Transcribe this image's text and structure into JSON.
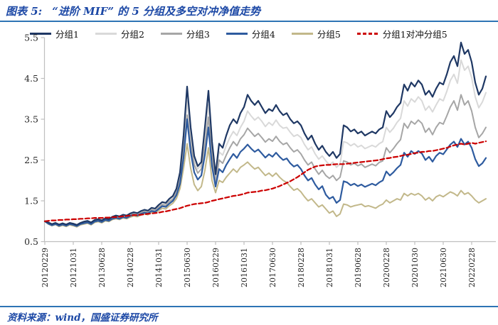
{
  "header": {
    "chart_label": "图表 5:",
    "title": "“进阶 MIF” 的 5 分组及多空对冲净值走势"
  },
  "footer": {
    "source": "资料来源：wind，国盛证券研究所"
  },
  "colors": {
    "title_blue": "#1D49A6",
    "rule_blue": "#2E74B5",
    "axis_gray": "#BFBFBF",
    "tick_text": "#262626"
  },
  "chart_data": {
    "type": "line",
    "title": "“进阶 MIF” 的 5 分组及多空对冲净值走势",
    "ylim": [
      0.5,
      5.5
    ],
    "y_ticks": [
      0.5,
      1.5,
      2.5,
      3.5,
      4.5,
      5.5
    ],
    "grid": false,
    "legend_position": "top",
    "x_tick_labels": [
      "20120229",
      "20121031",
      "20130628",
      "20140228",
      "20141031",
      "20150630",
      "20160229",
      "20161031",
      "20170630",
      "20180228",
      "20181031",
      "20190628",
      "20200228",
      "20201030",
      "20210630",
      "20220228"
    ],
    "months_per_tick": 8,
    "series": [
      {
        "name": "分组1",
        "color": "#1F3864",
        "dash": false,
        "values": [
          1.0,
          0.97,
          0.93,
          0.96,
          0.92,
          0.95,
          0.92,
          0.96,
          0.94,
          0.91,
          0.96,
          0.99,
          1.01,
          0.97,
          1.03,
          1.05,
          1.02,
          1.07,
          1.05,
          1.11,
          1.14,
          1.12,
          1.16,
          1.14,
          1.19,
          1.22,
          1.2,
          1.25,
          1.28,
          1.26,
          1.33,
          1.31,
          1.4,
          1.47,
          1.45,
          1.55,
          1.62,
          1.8,
          2.2,
          3.1,
          4.3,
          3.3,
          2.6,
          2.35,
          2.45,
          3.3,
          4.2,
          2.95,
          2.15,
          2.9,
          2.8,
          3.1,
          3.35,
          3.5,
          3.4,
          3.65,
          3.8,
          4.1,
          3.95,
          3.85,
          3.95,
          3.8,
          3.65,
          3.75,
          3.7,
          3.85,
          3.7,
          3.6,
          3.65,
          3.5,
          3.4,
          3.45,
          3.35,
          3.15,
          3.0,
          3.1,
          2.9,
          2.75,
          2.85,
          2.7,
          2.6,
          2.7,
          2.55,
          2.65,
          3.35,
          3.3,
          3.2,
          3.25,
          3.15,
          3.2,
          3.1,
          3.15,
          3.2,
          3.15,
          3.25,
          3.3,
          3.7,
          3.55,
          3.65,
          3.8,
          3.9,
          4.35,
          4.2,
          4.4,
          4.3,
          4.45,
          4.35,
          4.1,
          4.2,
          4.05,
          4.25,
          4.4,
          4.35,
          4.6,
          4.9,
          5.05,
          4.8,
          5.38,
          5.1,
          5.2,
          4.9,
          4.4,
          4.1,
          4.25,
          4.55
        ]
      },
      {
        "name": "分组2",
        "color": "#D9D9D9",
        "dash": false,
        "values": [
          1.0,
          0.96,
          0.92,
          0.95,
          0.91,
          0.94,
          0.91,
          0.95,
          0.93,
          0.9,
          0.95,
          0.97,
          0.99,
          0.95,
          1.01,
          1.03,
          1.0,
          1.05,
          1.03,
          1.09,
          1.12,
          1.1,
          1.14,
          1.12,
          1.17,
          1.2,
          1.18,
          1.23,
          1.26,
          1.24,
          1.31,
          1.29,
          1.38,
          1.45,
          1.43,
          1.52,
          1.59,
          1.76,
          2.1,
          2.9,
          3.95,
          3.1,
          2.5,
          2.28,
          2.38,
          3.05,
          3.85,
          2.8,
          2.05,
          2.7,
          2.62,
          2.85,
          3.05,
          3.2,
          3.1,
          3.3,
          3.45,
          3.7,
          3.58,
          3.48,
          3.55,
          3.45,
          3.32,
          3.42,
          3.35,
          3.48,
          3.35,
          3.28,
          3.3,
          3.18,
          3.08,
          3.12,
          3.05,
          2.88,
          2.75,
          2.82,
          2.65,
          2.52,
          2.6,
          2.48,
          2.38,
          2.45,
          2.32,
          2.4,
          2.95,
          2.92,
          2.85,
          2.9,
          2.82,
          2.86,
          2.78,
          2.82,
          2.86,
          2.82,
          2.9,
          2.95,
          3.3,
          3.18,
          3.28,
          3.42,
          3.52,
          3.95,
          3.82,
          4.0,
          3.92,
          4.05,
          3.95,
          3.72,
          3.82,
          3.68,
          3.85,
          4.0,
          3.95,
          4.18,
          4.45,
          4.6,
          4.38,
          4.95,
          4.7,
          4.8,
          4.52,
          4.05,
          3.78,
          3.92,
          4.15
        ]
      },
      {
        "name": "分组3",
        "color": "#A6A6A6",
        "dash": false,
        "values": [
          1.0,
          0.95,
          0.91,
          0.94,
          0.9,
          0.93,
          0.9,
          0.94,
          0.92,
          0.89,
          0.94,
          0.96,
          0.98,
          0.94,
          1.0,
          1.02,
          0.99,
          1.04,
          1.02,
          1.08,
          1.1,
          1.08,
          1.12,
          1.1,
          1.15,
          1.18,
          1.16,
          1.21,
          1.24,
          1.22,
          1.28,
          1.26,
          1.34,
          1.41,
          1.39,
          1.48,
          1.54,
          1.7,
          2.0,
          2.7,
          3.6,
          2.9,
          2.38,
          2.18,
          2.28,
          2.85,
          3.55,
          2.6,
          1.95,
          2.5,
          2.42,
          2.62,
          2.8,
          2.95,
          2.85,
          3.02,
          3.12,
          3.28,
          3.18,
          3.08,
          3.15,
          3.05,
          2.94,
          3.02,
          2.96,
          3.08,
          2.96,
          2.88,
          2.92,
          2.8,
          2.7,
          2.75,
          2.65,
          2.5,
          2.38,
          2.45,
          2.28,
          2.15,
          2.25,
          2.12,
          2.05,
          2.12,
          2.0,
          2.08,
          2.48,
          2.45,
          2.38,
          2.42,
          2.36,
          2.4,
          2.32,
          2.36,
          2.4,
          2.36,
          2.44,
          2.48,
          2.8,
          2.68,
          2.78,
          2.9,
          3.0,
          3.4,
          3.28,
          3.45,
          3.38,
          3.48,
          3.4,
          3.18,
          3.28,
          3.12,
          3.3,
          3.42,
          3.38,
          3.58,
          3.8,
          3.95,
          3.72,
          4.1,
          3.85,
          3.95,
          3.7,
          3.3,
          3.05,
          3.15,
          3.3
        ]
      },
      {
        "name": "分组4",
        "color": "#2E5B9F",
        "dash": false,
        "values": [
          1.0,
          0.94,
          0.9,
          0.93,
          0.89,
          0.92,
          0.89,
          0.93,
          0.91,
          0.88,
          0.93,
          0.95,
          0.97,
          0.93,
          0.99,
          1.01,
          0.98,
          1.03,
          1.01,
          1.06,
          1.08,
          1.06,
          1.1,
          1.08,
          1.13,
          1.16,
          1.14,
          1.18,
          1.21,
          1.19,
          1.25,
          1.23,
          1.3,
          1.37,
          1.35,
          1.43,
          1.5,
          1.64,
          1.92,
          2.55,
          3.5,
          2.7,
          2.2,
          2.02,
          2.12,
          2.62,
          3.3,
          2.35,
          1.85,
          2.28,
          2.2,
          2.38,
          2.52,
          2.65,
          2.55,
          2.7,
          2.78,
          2.88,
          2.78,
          2.7,
          2.76,
          2.66,
          2.56,
          2.64,
          2.58,
          2.68,
          2.58,
          2.5,
          2.54,
          2.42,
          2.34,
          2.38,
          2.28,
          2.12,
          2.0,
          2.06,
          1.9,
          1.78,
          1.86,
          1.65,
          1.55,
          1.6,
          1.45,
          1.52,
          1.98,
          1.95,
          1.88,
          1.92,
          1.86,
          1.9,
          1.84,
          1.88,
          1.92,
          1.88,
          1.95,
          2.0,
          2.22,
          2.12,
          2.2,
          2.3,
          2.38,
          2.68,
          2.58,
          2.72,
          2.65,
          2.72,
          2.66,
          2.5,
          2.58,
          2.46,
          2.6,
          2.68,
          2.64,
          2.76,
          2.88,
          2.95,
          2.82,
          3.02,
          2.88,
          2.95,
          2.8,
          2.52,
          2.35,
          2.42,
          2.55
        ]
      },
      {
        "name": "分组5",
        "color": "#C2B88A",
        "dash": false,
        "values": [
          1.0,
          0.93,
          0.89,
          0.92,
          0.87,
          0.9,
          0.87,
          0.91,
          0.89,
          0.86,
          0.91,
          0.93,
          0.95,
          0.91,
          0.97,
          0.99,
          0.96,
          1.01,
          0.99,
          1.04,
          1.06,
          1.04,
          1.08,
          1.06,
          1.1,
          1.13,
          1.11,
          1.15,
          1.18,
          1.16,
          1.22,
          1.2,
          1.26,
          1.32,
          1.3,
          1.38,
          1.44,
          1.56,
          1.8,
          2.3,
          2.9,
          2.3,
          1.9,
          1.75,
          1.85,
          2.25,
          2.8,
          2.0,
          1.7,
          2.0,
          1.95,
          2.08,
          2.18,
          2.28,
          2.2,
          2.32,
          2.38,
          2.45,
          2.36,
          2.28,
          2.32,
          2.22,
          2.12,
          2.18,
          2.1,
          2.18,
          2.08,
          2.0,
          1.95,
          1.85,
          1.76,
          1.8,
          1.72,
          1.6,
          1.5,
          1.55,
          1.45,
          1.35,
          1.4,
          1.3,
          1.2,
          1.25,
          1.12,
          1.18,
          1.42,
          1.4,
          1.35,
          1.38,
          1.4,
          1.42,
          1.36,
          1.38,
          1.35,
          1.32,
          1.38,
          1.42,
          1.52,
          1.45,
          1.5,
          1.55,
          1.52,
          1.68,
          1.62,
          1.68,
          1.64,
          1.68,
          1.62,
          1.52,
          1.58,
          1.5,
          1.6,
          1.64,
          1.6,
          1.66,
          1.72,
          1.68,
          1.62,
          1.75,
          1.66,
          1.7,
          1.62,
          1.52,
          1.45,
          1.5,
          1.55
        ]
      },
      {
        "name": "分组1对冲分组5",
        "color": "#CC0000",
        "dash": true,
        "values": [
          1.0,
          1.01,
          1.02,
          1.02,
          1.03,
          1.03,
          1.04,
          1.04,
          1.05,
          1.05,
          1.06,
          1.06,
          1.07,
          1.07,
          1.08,
          1.08,
          1.08,
          1.09,
          1.09,
          1.1,
          1.1,
          1.11,
          1.12,
          1.13,
          1.14,
          1.15,
          1.15,
          1.16,
          1.17,
          1.18,
          1.19,
          1.2,
          1.21,
          1.23,
          1.24,
          1.26,
          1.28,
          1.3,
          1.32,
          1.35,
          1.38,
          1.4,
          1.42,
          1.43,
          1.44,
          1.45,
          1.47,
          1.5,
          1.52,
          1.54,
          1.56,
          1.58,
          1.6,
          1.62,
          1.63,
          1.65,
          1.67,
          1.7,
          1.71,
          1.72,
          1.73,
          1.75,
          1.76,
          1.78,
          1.8,
          1.83,
          1.86,
          1.9,
          1.94,
          1.98,
          2.03,
          2.08,
          2.14,
          2.2,
          2.26,
          2.3,
          2.34,
          2.36,
          2.37,
          2.38,
          2.38,
          2.39,
          2.4,
          2.4,
          2.4,
          2.41,
          2.42,
          2.43,
          2.44,
          2.45,
          2.46,
          2.47,
          2.48,
          2.49,
          2.5,
          2.52,
          2.54,
          2.55,
          2.57,
          2.58,
          2.6,
          2.62,
          2.63,
          2.65,
          2.67,
          2.68,
          2.7,
          2.7,
          2.72,
          2.72,
          2.74,
          2.76,
          2.78,
          2.8,
          2.83,
          2.86,
          2.88,
          2.9,
          2.88,
          2.9,
          2.92,
          2.9,
          2.92,
          2.94,
          2.96
        ]
      }
    ]
  }
}
